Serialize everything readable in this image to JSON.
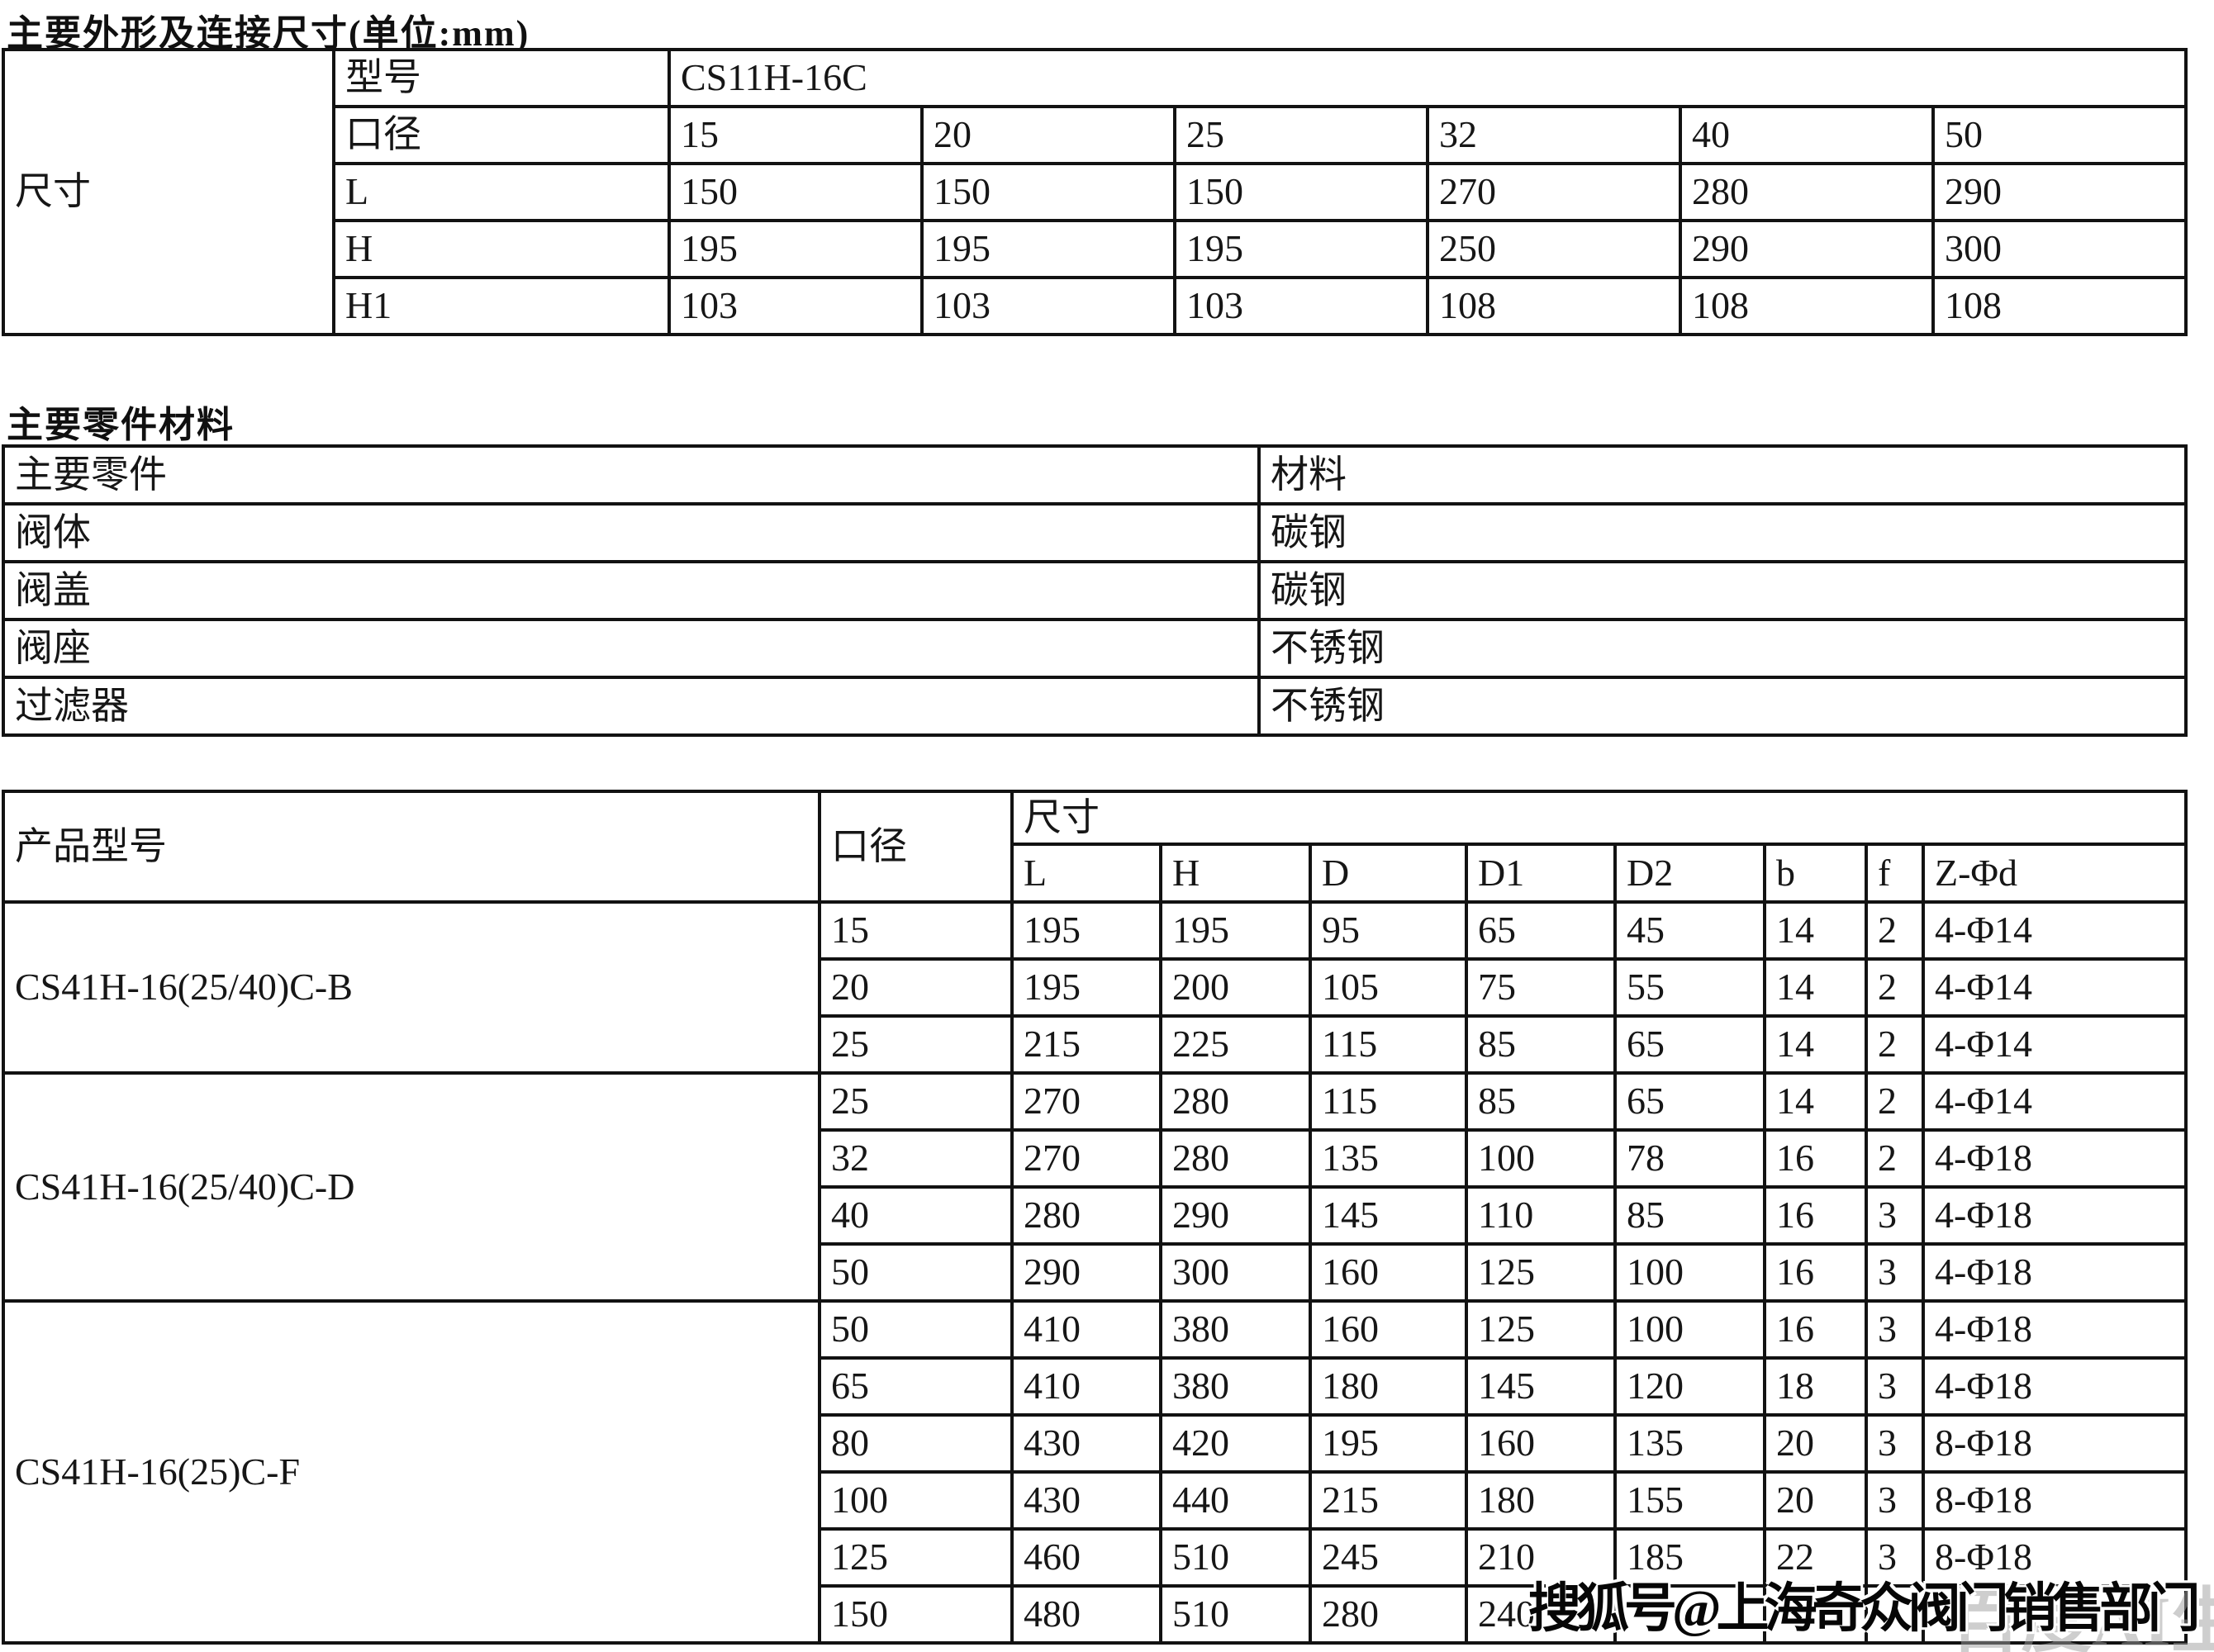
{
  "titles": {
    "dimensions": "主要外形及连接尺寸(单位:mm)",
    "materials": "主要零件材料"
  },
  "table1": {
    "corner_label": "尺寸",
    "model_label": "型号",
    "model_value": "CS11H-16C",
    "rows": [
      {
        "label": "口径",
        "values": [
          "15",
          "20",
          "25",
          "32",
          "40",
          "50"
        ]
      },
      {
        "label": "L",
        "values": [
          "150",
          "150",
          "150",
          "270",
          "280",
          "290"
        ]
      },
      {
        "label": "H",
        "values": [
          "195",
          "195",
          "195",
          "250",
          "290",
          "300"
        ]
      },
      {
        "label": "H1",
        "values": [
          "103",
          "103",
          "103",
          "108",
          "108",
          "108"
        ]
      }
    ]
  },
  "materials": {
    "headers": [
      "主要零件",
      "材料"
    ],
    "rows": [
      [
        "阀体",
        "碳钢"
      ],
      [
        "阀盖",
        "碳钢"
      ],
      [
        "阀座",
        "不锈钢"
      ],
      [
        "过滤器",
        "不锈钢"
      ]
    ]
  },
  "table3": {
    "col_product": "产品型号",
    "col_dn": "口径",
    "col_size": "尺寸",
    "sub_headers": [
      "L",
      "H",
      "D",
      "D1",
      "D2",
      "b",
      "f",
      "Z-Φd"
    ],
    "groups": [
      {
        "model": "CS41H-16(25/40)C-B",
        "rows": [
          [
            "15",
            "195",
            "195",
            "95",
            "65",
            "45",
            "14",
            "2",
            "4-Φ14"
          ],
          [
            "20",
            "195",
            "200",
            "105",
            "75",
            "55",
            "14",
            "2",
            "4-Φ14"
          ],
          [
            "25",
            "215",
            "225",
            "115",
            "85",
            "65",
            "14",
            "2",
            "4-Φ14"
          ]
        ]
      },
      {
        "model": "CS41H-16(25/40)C-D",
        "rows": [
          [
            "25",
            "270",
            "280",
            "115",
            "85",
            "65",
            "14",
            "2",
            "4-Φ14"
          ],
          [
            "32",
            "270",
            "280",
            "135",
            "100",
            "78",
            "16",
            "2",
            "4-Φ18"
          ],
          [
            "40",
            "280",
            "290",
            "145",
            "110",
            "85",
            "16",
            "3",
            "4-Φ18"
          ],
          [
            "50",
            "290",
            "300",
            "160",
            "125",
            "100",
            "16",
            "3",
            "4-Φ18"
          ]
        ]
      },
      {
        "model": "CS41H-16(25)C-F",
        "rows": [
          [
            "50",
            "410",
            "380",
            "160",
            "125",
            "100",
            "16",
            "3",
            "4-Φ18"
          ],
          [
            "65",
            "410",
            "380",
            "180",
            "145",
            "120",
            "18",
            "3",
            "4-Φ18"
          ],
          [
            "80",
            "430",
            "420",
            "195",
            "160",
            "135",
            "20",
            "3",
            "8-Φ18"
          ],
          [
            "100",
            "430",
            "440",
            "215",
            "180",
            "155",
            "20",
            "3",
            "8-Φ18"
          ],
          [
            "125",
            "460",
            "510",
            "245",
            "210",
            "185",
            "22",
            "3",
            "8-Φ18"
          ],
          [
            "150",
            "480",
            "510",
            "280",
            "240",
            "",
            "",
            "",
            ""
          ]
        ]
      }
    ]
  },
  "watermark": {
    "text": "搜狐号@上海奇众阀门销售部门",
    "ai_text": "百度AI生成"
  }
}
